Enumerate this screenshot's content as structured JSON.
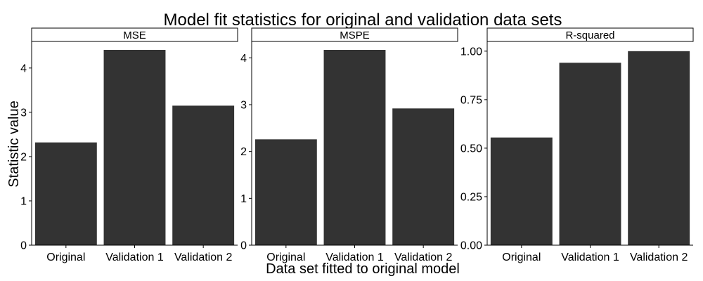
{
  "chart_data": {
    "type": "bar",
    "title": "Model fit statistics for original and validation data sets",
    "xlabel": "Data set fitted to original model",
    "ylabel": "Statistic value",
    "categories": [
      "Original",
      "Validation 1",
      "Validation 2"
    ],
    "bar_color": "#333333",
    "grid": false,
    "legend": "none",
    "panels": [
      {
        "label": "MSE",
        "values": [
          2.32,
          4.41,
          3.15
        ],
        "ylim": [
          0,
          4.6
        ],
        "yticks": [
          0,
          1,
          2,
          3,
          4
        ],
        "ytick_labels": [
          "0",
          "1",
          "2",
          "3",
          "4"
        ]
      },
      {
        "label": "MSPE",
        "values": [
          2.26,
          4.17,
          2.92
        ],
        "ylim": [
          0,
          4.35
        ],
        "yticks": [
          0,
          1,
          2,
          3,
          4
        ],
        "ytick_labels": [
          "0",
          "1",
          "2",
          "3",
          "4"
        ]
      },
      {
        "label": "R-squared",
        "values": [
          0.555,
          0.94,
          1.0
        ],
        "ylim": [
          0,
          1.05
        ],
        "yticks": [
          0,
          0.25,
          0.5,
          0.75,
          1.0
        ],
        "ytick_labels": [
          "0.00",
          "0.25",
          "0.50",
          "0.75",
          "1.00"
        ]
      }
    ]
  }
}
